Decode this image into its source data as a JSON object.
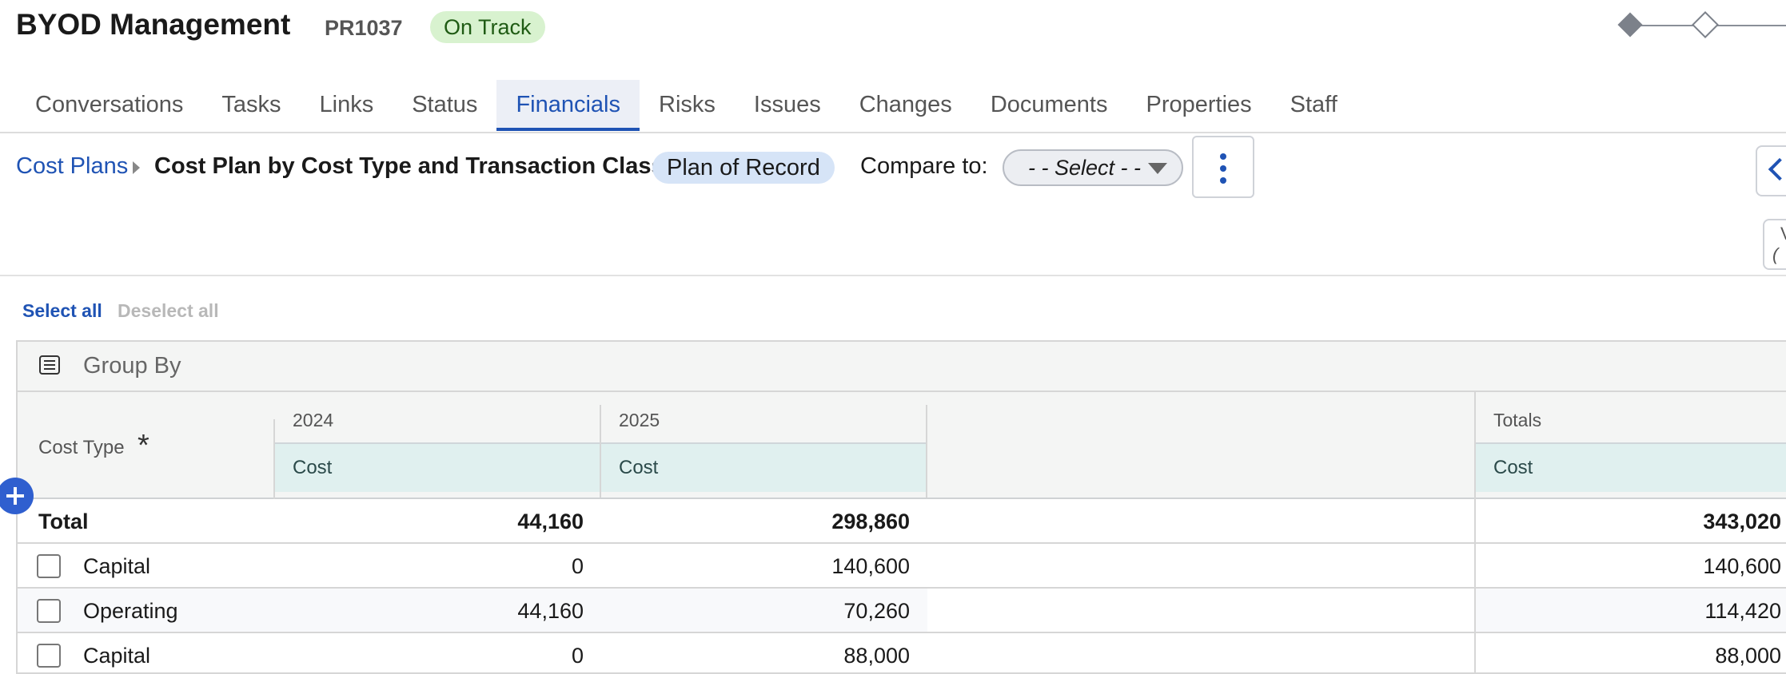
{
  "header": {
    "title": "BYOD Management",
    "project_id": "PR1037",
    "status": "On Track"
  },
  "tabs": [
    {
      "label": "Conversations"
    },
    {
      "label": "Tasks"
    },
    {
      "label": "Links"
    },
    {
      "label": "Status"
    },
    {
      "label": "Financials",
      "active": true
    },
    {
      "label": "Risks"
    },
    {
      "label": "Issues"
    },
    {
      "label": "Changes"
    },
    {
      "label": "Documents"
    },
    {
      "label": "Properties"
    },
    {
      "label": "Staff"
    }
  ],
  "toolbar": {
    "breadcrumb": "Cost Plans",
    "plan_name": "Cost Plan by Cost Type and Transaction Class",
    "plan_badge": "Plan of Record",
    "compare_label": "Compare to:",
    "compare_value": "- - Select - -"
  },
  "side_panel": {
    "line1": "V",
    "line2": "("
  },
  "selection": {
    "select_all": "Select all",
    "deselect_all": "Deselect all"
  },
  "grid": {
    "group_by": "Group By",
    "cost_type_header": "Cost Type",
    "required_mark": "*",
    "years": [
      "2024",
      "2025"
    ],
    "totals_header": "Totals",
    "sub_header": "Cost",
    "total_row": {
      "label": "Total",
      "y2024": "44,160",
      "y2025": "298,860",
      "total": "343,020"
    },
    "rows": [
      {
        "label": "Capital",
        "y2024": "0",
        "y2025": "140,600",
        "total": "140,600"
      },
      {
        "label": "Operating",
        "y2024": "44,160",
        "y2025": "70,260",
        "total": "114,420"
      },
      {
        "label": "Capital",
        "y2024": "0",
        "y2025": "88,000",
        "total": "88,000"
      }
    ]
  },
  "colors": {
    "accent": "#1f53b4",
    "status_bg": "#d8f2cf",
    "badge_bg": "#d6e4f7",
    "subheader_bg": "#e0f0ef"
  }
}
